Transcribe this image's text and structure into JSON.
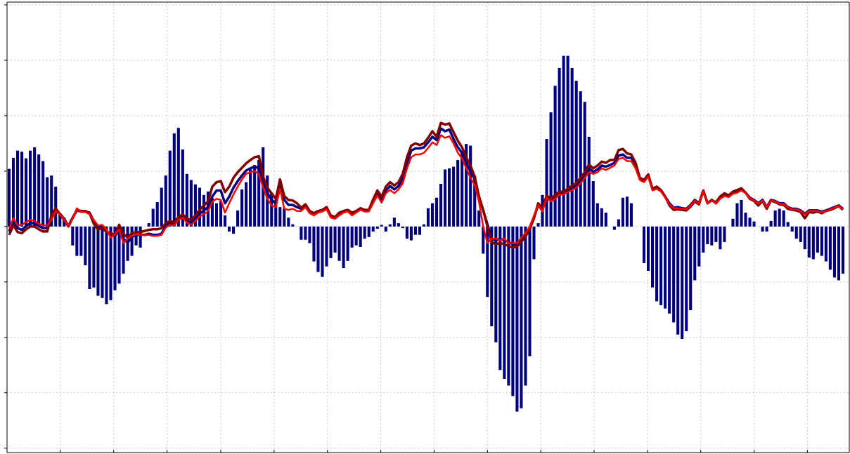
{
  "chart_data": {
    "type": "bar",
    "color": "#000080",
    "x": [
      0,
      1,
      2,
      3,
      4,
      5,
      6,
      7,
      8,
      9,
      10,
      11,
      12,
      13,
      14,
      15,
      16,
      17,
      18,
      19,
      20,
      21,
      22,
      23,
      24,
      25,
      26,
      27,
      28,
      29,
      30,
      31,
      32,
      33,
      34,
      35,
      36,
      37,
      38,
      39,
      40,
      41,
      42,
      43,
      44,
      45,
      46,
      47,
      48,
      49,
      50,
      51,
      52,
      53,
      54,
      55,
      56,
      57,
      58,
      59,
      60,
      61,
      62,
      63,
      64,
      65,
      66,
      67,
      68,
      69,
      70,
      71,
      72,
      73,
      74,
      75,
      76,
      77,
      78,
      79,
      80,
      81,
      82,
      83,
      84,
      85,
      86,
      87,
      88,
      89,
      90,
      91,
      92,
      93,
      94,
      95,
      96,
      97,
      98,
      99,
      100,
      101,
      102,
      103,
      104,
      105,
      106,
      107,
      108,
      109,
      110,
      111,
      112,
      113,
      114,
      115,
      116,
      117,
      118,
      119,
      120,
      121,
      122,
      123,
      124,
      125,
      126,
      127,
      128,
      129,
      130,
      131,
      132,
      133,
      134,
      135,
      136,
      137,
      138,
      139,
      140,
      141,
      142,
      143,
      144,
      145,
      146,
      147,
      148,
      149,
      150,
      151,
      152,
      153,
      154,
      155,
      156,
      157,
      158,
      159,
      160,
      161,
      162,
      163,
      164,
      165,
      166,
      167,
      168,
      169,
      170,
      171,
      172,
      173,
      174,
      175,
      176,
      177,
      178,
      179,
      180,
      181,
      182,
      183,
      184,
      185,
      186,
      187,
      188,
      189,
      190,
      191,
      192,
      193,
      194,
      195,
      196,
      197
    ],
    "values": [
      1.04,
      1.24,
      1.37,
      1.35,
      1.23,
      1.37,
      1.43,
      1.3,
      1.18,
      0.89,
      0.92,
      0.72,
      0.23,
      0.16,
      0,
      -0.34,
      -0.53,
      -0.53,
      -0.7,
      -1.13,
      -1.1,
      -1.25,
      -1.29,
      -1.4,
      -1.33,
      -1.15,
      -1.03,
      -0.85,
      -0.62,
      -0.53,
      -0.34,
      -0.38,
      0,
      0.06,
      0.32,
      0.44,
      0.7,
      0.92,
      1.37,
      1.68,
      1.78,
      1.39,
      0.95,
      0.84,
      0.76,
      0.7,
      0.57,
      0.63,
      0.51,
      0.42,
      0.46,
      0.2,
      -0.09,
      -0.13,
      0.29,
      0.67,
      0.8,
      1.03,
      1.11,
      1.2,
      1.43,
      0.92,
      0.61,
      0.48,
      0.35,
      0.33,
      0.16,
      0.04,
      0,
      -0.24,
      -0.24,
      -0.3,
      -0.63,
      -0.82,
      -0.91,
      -0.72,
      -0.57,
      -0.47,
      -0.62,
      -0.75,
      -0.62,
      -0.38,
      -0.34,
      -0.37,
      -0.22,
      -0.19,
      -0.09,
      -0.04,
      0.03,
      -0.09,
      0.04,
      0.16,
      0.06,
      -0.03,
      -0.22,
      -0.25,
      -0.15,
      -0.15,
      0.04,
      0.33,
      0.42,
      0.52,
      0.77,
      1.03,
      1.05,
      1.08,
      1.2,
      1.34,
      1.49,
      1.46,
      0.92,
      0.29,
      -0.49,
      -1.27,
      -1.8,
      -2.09,
      -2.59,
      -2.75,
      -2.87,
      -3.06,
      -3.34,
      -3.28,
      -2.87,
      -2.34,
      -0.59,
      0.06,
      0.57,
      1.58,
      2.06,
      2.54,
      2.86,
      3.08,
      3.08,
      2.86,
      2.63,
      2.44,
      2.25,
      1.62,
      0.82,
      0.42,
      0.33,
      0.25,
      0,
      -0.06,
      0.13,
      0.52,
      0.54,
      0.42,
      0,
      0,
      -0.66,
      -0.8,
      -1.1,
      -1.35,
      -1.42,
      -1.48,
      -1.57,
      -1.73,
      -1.95,
      -2.03,
      -1.89,
      -1.51,
      -0.97,
      -0.72,
      -0.47,
      -0.32,
      -0.34,
      -0.28,
      -0.41,
      -0.28,
      0,
      0.14,
      0.42,
      0.48,
      0.25,
      0.16,
      0.09,
      0,
      -0.09,
      -0.09,
      0.1,
      0.29,
      0.32,
      0.29,
      0.08,
      -0.09,
      -0.22,
      -0.28,
      -0.41,
      -0.56,
      -0.59,
      -0.47,
      -0.53,
      -0.63,
      -0.78,
      -0.92,
      -0.97,
      -0.85
    ],
    "series": [
      {
        "type": "line",
        "color": "#000080",
        "values": [
          -0.09,
          0.1,
          -0.03,
          -0.06,
          0.01,
          0.06,
          0.06,
          0.01,
          -0.03,
          -0.03,
          0.16,
          0.29,
          0.23,
          0.14,
          0.01,
          0.16,
          0.29,
          0.27,
          0.27,
          0.25,
          0.1,
          -0.03,
          0.01,
          -0.09,
          -0.13,
          -0.18,
          -0.03,
          -0.22,
          -0.29,
          -0.19,
          -0.15,
          -0.15,
          -0.15,
          -0.13,
          -0.15,
          -0.15,
          -0.13,
          0.01,
          0.06,
          0.04,
          0.14,
          0.19,
          0.1,
          0.06,
          0.14,
          0.23,
          0.29,
          0.35,
          0.54,
          0.65,
          0.65,
          0.42,
          0.54,
          0.7,
          0.82,
          0.92,
          1.01,
          1.05,
          1.08,
          1.05,
          0.82,
          0.61,
          0.48,
          0.42,
          0.77,
          0.48,
          0.39,
          0.39,
          0.35,
          0.32,
          0.39,
          0.27,
          0.23,
          0.27,
          0.29,
          0.33,
          0.19,
          0.16,
          0.23,
          0.27,
          0.29,
          0.23,
          0.27,
          0.32,
          0.29,
          0.29,
          0.46,
          0.61,
          0.48,
          0.65,
          0.73,
          0.67,
          0.73,
          0.86,
          1.15,
          1.37,
          1.41,
          1.41,
          1.43,
          1.52,
          1.62,
          1.56,
          1.77,
          1.72,
          1.75,
          1.58,
          1.43,
          1.33,
          1.15,
          0.99,
          0.86,
          0.52,
          0.29,
          0.04,
          -0.22,
          -0.25,
          -0.22,
          -0.25,
          -0.28,
          -0.32,
          -0.32,
          -0.24,
          -0.15,
          -0.03,
          0.16,
          0.39,
          0.29,
          0.54,
          0.48,
          0.54,
          0.61,
          0.61,
          0.65,
          0.7,
          0.73,
          0.82,
          0.92,
          1.05,
          0.99,
          1.03,
          1.1,
          1.08,
          1.11,
          1.15,
          1.28,
          1.3,
          1.24,
          1.24,
          1.11,
          0.86,
          0.82,
          0.92,
          0.67,
          0.7,
          0.65,
          0.54,
          0.42,
          0.34,
          0.35,
          0.33,
          0.32,
          0.39,
          0.48,
          0.42,
          0.65,
          0.42,
          0.48,
          0.42,
          0.52,
          0.57,
          0.54,
          0.61,
          0.63,
          0.67,
          0.61,
          0.52,
          0.48,
          0.42,
          0.48,
          0.35,
          0.48,
          0.46,
          0.42,
          0.42,
          0.35,
          0.32,
          0.32,
          0.29,
          0.23,
          0.29,
          0.29,
          0.29,
          0.27,
          0.29,
          0.32,
          0.35,
          0.38,
          0.32
        ]
      },
      {
        "type": "line",
        "color": "#800000",
        "values": [
          -0.15,
          0.02,
          -0.1,
          -0.12,
          -0.05,
          0,
          0,
          -0.05,
          -0.09,
          -0.09,
          0.2,
          0.33,
          0.22,
          0.12,
          0,
          0.15,
          0.3,
          0.28,
          0.28,
          0.24,
          0.05,
          -0.06,
          -0.02,
          -0.1,
          -0.12,
          -0.15,
          0.03,
          -0.13,
          -0.2,
          -0.12,
          -0.1,
          -0.1,
          -0.08,
          -0.06,
          -0.05,
          -0.05,
          -0.03,
          0.06,
          0.1,
          0.08,
          0.17,
          0.22,
          0.14,
          0.12,
          0.2,
          0.3,
          0.38,
          0.45,
          0.72,
          0.8,
          0.82,
          0.62,
          0.72,
          0.88,
          0.98,
          1.06,
          1.14,
          1.2,
          1.25,
          1.27,
          0.9,
          0.7,
          0.6,
          0.5,
          0.85,
          0.55,
          0.48,
          0.47,
          0.42,
          0.34,
          0.4,
          0.28,
          0.24,
          0.28,
          0.3,
          0.35,
          0.2,
          0.17,
          0.25,
          0.28,
          0.3,
          0.25,
          0.28,
          0.33,
          0.3,
          0.3,
          0.49,
          0.65,
          0.54,
          0.72,
          0.8,
          0.74,
          0.8,
          0.95,
          1.25,
          1.46,
          1.5,
          1.47,
          1.5,
          1.6,
          1.72,
          1.62,
          1.87,
          1.84,
          1.86,
          1.7,
          1.55,
          1.43,
          1.25,
          1.1,
          0.9,
          0.55,
          0.3,
          0.0,
          -0.28,
          -0.32,
          -0.3,
          -0.32,
          -0.35,
          -0.38,
          -0.36,
          -0.28,
          -0.18,
          -0.05,
          0.15,
          0.42,
          0.32,
          0.56,
          0.5,
          0.57,
          0.63,
          0.63,
          0.68,
          0.74,
          0.78,
          0.88,
          0.98,
          1.12,
          1.05,
          1.1,
          1.17,
          1.15,
          1.2,
          1.2,
          1.38,
          1.4,
          1.32,
          1.3,
          1.15,
          0.88,
          0.84,
          0.94,
          0.68,
          0.72,
          0.66,
          0.54,
          0.38,
          0.3,
          0.31,
          0.3,
          0.29,
          0.36,
          0.45,
          0.4,
          0.65,
          0.42,
          0.47,
          0.44,
          0.54,
          0.6,
          0.56,
          0.63,
          0.66,
          0.69,
          0.61,
          0.5,
          0.46,
          0.38,
          0.46,
          0.32,
          0.47,
          0.44,
          0.4,
          0.39,
          0.32,
          0.3,
          0.29,
          0.26,
          0.15,
          0.26,
          0.25,
          0.27,
          0.24,
          0.28,
          0.3,
          0.33,
          0.37,
          0.3
        ]
      },
      {
        "type": "line",
        "color": "#ff0000",
        "values": [
          -0.04,
          0.15,
          0.02,
          0.03,
          0.08,
          0.12,
          0.1,
          0.05,
          0.02,
          0.02,
          0.12,
          0.27,
          0.22,
          0.13,
          0.01,
          0.14,
          0.33,
          0.26,
          0.26,
          0.22,
          0.12,
          0.02,
          0.03,
          -0.05,
          -0.2,
          -0.14,
          -0.06,
          -0.3,
          -0.22,
          -0.17,
          -0.14,
          -0.15,
          -0.16,
          -0.15,
          -0.17,
          -0.17,
          -0.15,
          -0.02,
          0.03,
          0.02,
          0.12,
          0.16,
          0.07,
          0.03,
          0.1,
          0.18,
          0.22,
          0.28,
          0.45,
          0.5,
          0.48,
          0.25,
          0.42,
          0.58,
          0.72,
          0.85,
          0.95,
          0.98,
          1.0,
          0.95,
          0.7,
          0.5,
          0.38,
          0.35,
          0.68,
          0.32,
          0.3,
          0.32,
          0.28,
          0.28,
          0.35,
          0.24,
          0.2,
          0.25,
          0.27,
          0.31,
          0.16,
          0.14,
          0.2,
          0.25,
          0.27,
          0.2,
          0.25,
          0.3,
          0.27,
          0.27,
          0.42,
          0.56,
          0.43,
          0.6,
          0.66,
          0.6,
          0.67,
          0.78,
          1.05,
          1.25,
          1.3,
          1.3,
          1.33,
          1.42,
          1.52,
          1.47,
          1.65,
          1.6,
          1.63,
          1.5,
          1.33,
          1.23,
          1.05,
          0.88,
          0.75,
          0.45,
          0.0,
          -0.3,
          -0.22,
          -0.22,
          -0.25,
          -0.22,
          -0.3,
          -0.3,
          -0.3,
          -0.2,
          -0.12,
          0.0,
          0.2,
          0.38,
          0.27,
          0.52,
          0.45,
          0.5,
          0.58,
          0.58,
          0.62,
          0.66,
          0.7,
          0.78,
          0.88,
          0.98,
          0.95,
          0.98,
          1.05,
          1.02,
          1.06,
          1.1,
          1.22,
          1.24,
          1.18,
          1.18,
          1.05,
          0.84,
          0.8,
          0.9,
          0.65,
          0.68,
          0.63,
          0.52,
          0.4,
          0.33,
          0.33,
          0.32,
          0.31,
          0.38,
          0.47,
          0.41,
          0.64,
          0.41,
          0.47,
          0.41,
          0.5,
          0.55,
          0.53,
          0.59,
          0.61,
          0.65,
          0.6,
          0.51,
          0.47,
          0.41,
          0.47,
          0.35,
          0.47,
          0.45,
          0.41,
          0.41,
          0.35,
          0.31,
          0.31,
          0.28,
          0.22,
          0.28,
          0.28,
          0.28,
          0.26,
          0.28,
          0.31,
          0.34,
          0.37,
          0.31
        ]
      }
    ],
    "xlim": [
      -0.5,
      198.5
    ],
    "xticks": [
      -0.5,
      12.1,
      24.7,
      37.3,
      50,
      62.6,
      75.2,
      87.8,
      100.4,
      113,
      125.6,
      138.2,
      150.8,
      163.4,
      176,
      188.6
    ],
    "ylim": [
      -4.08,
      4.05
    ],
    "yticks": [
      -4,
      -3,
      -2,
      -1,
      0,
      1,
      2,
      3,
      4
    ],
    "grid": true
  }
}
